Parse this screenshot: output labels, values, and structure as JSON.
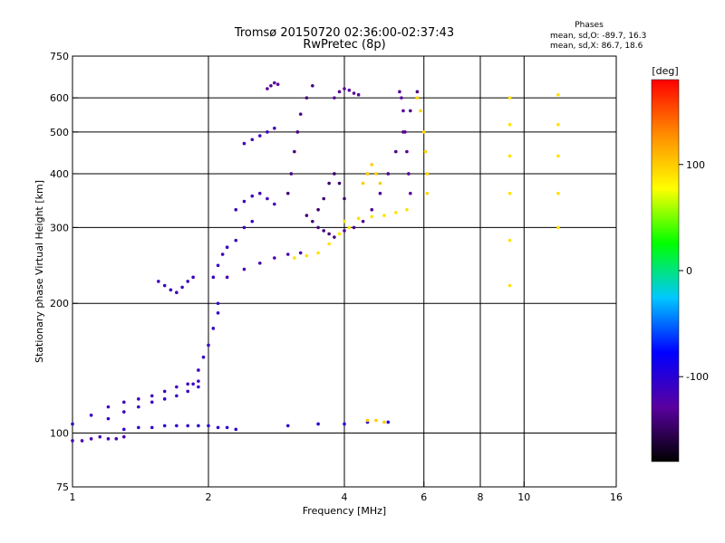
{
  "chart_data": {
    "type": "scatter",
    "title": "Tromsø 20150720 02:36:00-02:37:43",
    "subtitle": "RwPretec (8p)",
    "xlabel": "Frequency [MHz]",
    "ylabel": "Stationary phase Virtual Height [km]",
    "x_scale": "log",
    "y_scale": "log",
    "xlim": [
      1,
      16
    ],
    "ylim": [
      75,
      750
    ],
    "x_ticks": [
      {
        "value": 1,
        "label": "1"
      },
      {
        "value": 2,
        "label": "2"
      },
      {
        "value": 4,
        "label": "4"
      },
      {
        "value": 6,
        "label": "6"
      },
      {
        "value": 8,
        "label": "8"
      },
      {
        "value": 10,
        "label": "10"
      },
      {
        "value": 16,
        "label": "16"
      }
    ],
    "y_ticks": [
      {
        "value": 75,
        "label": "75"
      },
      {
        "value": 100,
        "label": "100"
      },
      {
        "value": 200,
        "label": "200"
      },
      {
        "value": 300,
        "label": "300"
      },
      {
        "value": 400,
        "label": "400"
      },
      {
        "value": 500,
        "label": "500"
      },
      {
        "value": 600,
        "label": "600"
      },
      {
        "value": 750,
        "label": "750"
      }
    ],
    "grid": true,
    "phases_box": {
      "heading": "Phases",
      "line_o": "mean, sd,O: -89.7, 16.3",
      "line_x": "mean, sd,X: 86.7, 18.6"
    },
    "colorbar": {
      "label": "[deg]",
      "range": [
        -180,
        180
      ],
      "ticks": [
        {
          "value": 100,
          "label": "100"
        },
        {
          "value": 0,
          "label": "0"
        },
        {
          "value": -100,
          "label": "-100"
        }
      ],
      "colors": [
        "#000000",
        "#5a00a0",
        "#0000ff",
        "#00c8ff",
        "#00ff00",
        "#ffff00",
        "#ff8c00",
        "#ff0000"
      ]
    },
    "traces": [
      {
        "name": "",
        "phase": -120,
        "points": [
          [
            1.0,
            96
          ],
          [
            1.05,
            96
          ],
          [
            1.1,
            97
          ],
          [
            1.15,
            98
          ],
          [
            1.2,
            97
          ],
          [
            1.25,
            97
          ],
          [
            1.3,
            98
          ]
        ]
      },
      {
        "name": "",
        "phase": -110,
        "points": [
          [
            1.0,
            105
          ],
          [
            1.1,
            110
          ],
          [
            1.2,
            108
          ],
          [
            1.3,
            112
          ],
          [
            1.4,
            115
          ],
          [
            1.5,
            118
          ],
          [
            1.6,
            120
          ],
          [
            1.7,
            122
          ],
          [
            1.8,
            125
          ],
          [
            1.9,
            128
          ]
        ]
      },
      {
        "name": "",
        "phase": -105,
        "points": [
          [
            1.3,
            102
          ],
          [
            1.4,
            103
          ],
          [
            1.5,
            103
          ],
          [
            1.6,
            104
          ],
          [
            1.7,
            104
          ],
          [
            1.8,
            104
          ],
          [
            1.9,
            104
          ],
          [
            2.0,
            104
          ],
          [
            2.1,
            103
          ],
          [
            2.2,
            103
          ],
          [
            2.3,
            102
          ]
        ]
      },
      {
        "name": "",
        "phase": -115,
        "points": [
          [
            1.2,
            115
          ],
          [
            1.3,
            118
          ],
          [
            1.4,
            120
          ],
          [
            1.5,
            122
          ],
          [
            1.6,
            125
          ],
          [
            1.7,
            128
          ],
          [
            1.8,
            130
          ],
          [
            1.9,
            132
          ]
        ]
      },
      {
        "name": "",
        "phase": -110,
        "points": [
          [
            1.85,
            130
          ],
          [
            1.9,
            140
          ],
          [
            1.95,
            150
          ],
          [
            2.0,
            160
          ],
          [
            2.05,
            175
          ],
          [
            2.1,
            190
          ],
          [
            2.1,
            200
          ]
        ]
      },
      {
        "name": "",
        "phase": -112,
        "points": [
          [
            1.55,
            225
          ],
          [
            1.6,
            220
          ],
          [
            1.65,
            215
          ],
          [
            1.7,
            212
          ],
          [
            1.75,
            218
          ],
          [
            1.8,
            225
          ],
          [
            1.85,
            230
          ]
        ]
      },
      {
        "name": "",
        "phase": -110,
        "points": [
          [
            2.05,
            230
          ],
          [
            2.1,
            245
          ],
          [
            2.15,
            260
          ],
          [
            2.2,
            270
          ],
          [
            2.3,
            280
          ],
          [
            2.4,
            300
          ],
          [
            2.5,
            310
          ]
        ]
      },
      {
        "name": "",
        "phase": -120,
        "points": [
          [
            2.2,
            230
          ],
          [
            2.4,
            240
          ],
          [
            2.6,
            248
          ],
          [
            2.8,
            255
          ],
          [
            3.0,
            260
          ],
          [
            3.2,
            262
          ]
        ]
      },
      {
        "name": "",
        "phase": -115,
        "points": [
          [
            2.3,
            330
          ],
          [
            2.4,
            345
          ],
          [
            2.5,
            355
          ],
          [
            2.6,
            360
          ],
          [
            2.7,
            350
          ],
          [
            2.8,
            340
          ]
        ]
      },
      {
        "name": "",
        "phase": -115,
        "points": [
          [
            2.4,
            470
          ],
          [
            2.5,
            480
          ],
          [
            2.6,
            490
          ],
          [
            2.7,
            500
          ],
          [
            2.8,
            510
          ]
        ]
      },
      {
        "name": "",
        "phase": -130,
        "points": [
          [
            2.7,
            630
          ],
          [
            2.75,
            640
          ],
          [
            2.8,
            650
          ],
          [
            2.85,
            645
          ]
        ]
      },
      {
        "name": "",
        "phase": -140,
        "points": [
          [
            3.0,
            360
          ],
          [
            3.05,
            400
          ],
          [
            3.1,
            450
          ],
          [
            3.15,
            500
          ],
          [
            3.2,
            550
          ],
          [
            3.3,
            600
          ],
          [
            3.4,
            640
          ]
        ]
      },
      {
        "name": "",
        "phase": -145,
        "points": [
          [
            3.5,
            330
          ],
          [
            3.6,
            350
          ],
          [
            3.7,
            380
          ],
          [
            3.8,
            400
          ],
          [
            3.9,
            380
          ],
          [
            4.0,
            350
          ]
        ]
      },
      {
        "name": "",
        "phase": -140,
        "points": [
          [
            3.3,
            320
          ],
          [
            3.4,
            310
          ],
          [
            3.5,
            300
          ],
          [
            3.6,
            295
          ],
          [
            3.7,
            290
          ],
          [
            3.8,
            285
          ]
        ]
      },
      {
        "name": "",
        "phase": -135,
        "points": [
          [
            4.0,
            295
          ],
          [
            4.2,
            300
          ],
          [
            4.4,
            310
          ],
          [
            4.6,
            330
          ],
          [
            4.8,
            360
          ],
          [
            5.0,
            400
          ],
          [
            5.2,
            450
          ],
          [
            5.4,
            500
          ],
          [
            5.6,
            560
          ],
          [
            5.8,
            620
          ]
        ]
      },
      {
        "name": "",
        "phase": -130,
        "points": [
          [
            5.3,
            620
          ],
          [
            5.35,
            600
          ],
          [
            5.4,
            560
          ],
          [
            5.45,
            500
          ],
          [
            5.5,
            450
          ],
          [
            5.55,
            400
          ],
          [
            5.6,
            360
          ]
        ]
      },
      {
        "name": "",
        "phase": -130,
        "points": [
          [
            3.8,
            600
          ],
          [
            3.9,
            620
          ],
          [
            4.0,
            630
          ],
          [
            4.1,
            625
          ],
          [
            4.2,
            615
          ],
          [
            4.3,
            610
          ]
        ]
      },
      {
        "name": "",
        "phase": 90,
        "points": [
          [
            3.1,
            255
          ],
          [
            3.3,
            258
          ],
          [
            3.5,
            262
          ],
          [
            3.7,
            275
          ],
          [
            3.9,
            290
          ],
          [
            4.1,
            300
          ]
        ]
      },
      {
        "name": "",
        "phase": 90,
        "points": [
          [
            4.0,
            310
          ],
          [
            4.3,
            315
          ],
          [
            4.6,
            318
          ],
          [
            4.9,
            320
          ],
          [
            5.2,
            325
          ],
          [
            5.5,
            330
          ]
        ]
      },
      {
        "name": "",
        "phase": 95,
        "points": [
          [
            5.8,
            600
          ],
          [
            5.9,
            560
          ],
          [
            6.0,
            500
          ],
          [
            6.05,
            450
          ],
          [
            6.1,
            400
          ],
          [
            6.1,
            360
          ]
        ]
      },
      {
        "name": "",
        "phase": 100,
        "points": [
          [
            4.4,
            380
          ],
          [
            4.5,
            400
          ],
          [
            4.6,
            420
          ],
          [
            4.7,
            400
          ],
          [
            4.8,
            380
          ]
        ]
      },
      {
        "name": "",
        "phase": 90,
        "points": [
          [
            9.3,
            600
          ],
          [
            9.3,
            520
          ],
          [
            9.3,
            440
          ],
          [
            9.3,
            360
          ],
          [
            9.3,
            280
          ],
          [
            9.3,
            220
          ]
        ]
      },
      {
        "name": "",
        "phase": 90,
        "points": [
          [
            11.9,
            610
          ],
          [
            11.9,
            520
          ],
          [
            11.9,
            440
          ],
          [
            11.9,
            360
          ],
          [
            11.9,
            300
          ]
        ]
      },
      {
        "name": "",
        "phase": -100,
        "points": [
          [
            3.0,
            104
          ],
          [
            3.5,
            105
          ],
          [
            4.0,
            105
          ],
          [
            4.5,
            106
          ],
          [
            5.0,
            106
          ]
        ]
      },
      {
        "name": "",
        "phase": 100,
        "points": [
          [
            4.5,
            107
          ],
          [
            4.7,
            107
          ],
          [
            4.9,
            106
          ]
        ]
      }
    ]
  }
}
